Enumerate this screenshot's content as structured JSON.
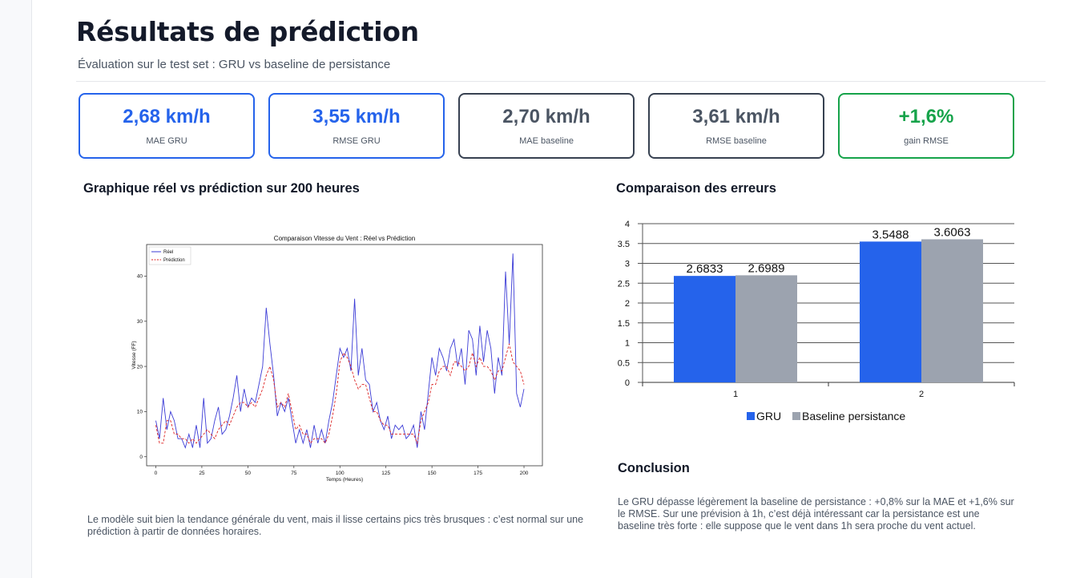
{
  "page": {
    "title": "Résultats de prédiction",
    "subtitle": "Évaluation sur le test set : GRU vs baseline de persistance"
  },
  "metrics": [
    {
      "value": "2,68 km/h",
      "label": "MAE GRU",
      "color": "#2563eb"
    },
    {
      "value": "3,55 km/h",
      "label": "RMSE GRU",
      "color": "#2563eb"
    },
    {
      "value": "2,70 km/h",
      "label": "MAE baseline",
      "color": "#4b5563"
    },
    {
      "value": "3,61 km/h",
      "label": "RMSE baseline",
      "color": "#4b5563"
    },
    {
      "value": "+1,6%",
      "label": "gain RMSE",
      "color": "#16a34a"
    }
  ],
  "sections": {
    "line_heading": "Graphique réel vs prédiction sur 200 heures",
    "line_note": "Le modèle suit bien la tendance générale du vent, mais il lisse certains pics très brusques : c’est normal sur une prédiction à partir de données horaires.",
    "bar_heading": "Comparaison des erreurs",
    "conclusion_heading": "Conclusion",
    "conclusion_text": "Le GRU dépasse légèrement la baseline de persistance : +0,8% sur la MAE et +1,6% sur le RMSE. Sur une prévision à 1h, c’est déjà intéressant car la persistance est une baseline très forte : elle suppose que le vent dans 1h sera proche du vent actuel."
  },
  "chart_data": [
    {
      "type": "line",
      "title": "Comparaison Vitesse du Vent : Réel vs Prédiction",
      "xlabel": "Temps (Heures)",
      "ylabel": "Vitesse (FF)",
      "xlim": [
        -5,
        210
      ],
      "ylim": [
        -2,
        47
      ],
      "xticks": [
        0,
        25,
        50,
        75,
        100,
        125,
        150,
        175,
        200
      ],
      "yticks": [
        0,
        10,
        20,
        30,
        40
      ],
      "legend_position": "top-left",
      "series": [
        {
          "name": "Réel",
          "color": "#3b3bd6",
          "style": "solid",
          "points": [
            [
              0,
              8
            ],
            [
              2,
              4
            ],
            [
              4,
              13
            ],
            [
              6,
              6
            ],
            [
              8,
              10
            ],
            [
              10,
              8
            ],
            [
              12,
              4
            ],
            [
              14,
              4
            ],
            [
              16,
              2
            ],
            [
              18,
              5
            ],
            [
              20,
              2
            ],
            [
              22,
              7
            ],
            [
              24,
              2
            ],
            [
              26,
              13
            ],
            [
              28,
              3
            ],
            [
              30,
              4
            ],
            [
              32,
              8
            ],
            [
              34,
              11
            ],
            [
              36,
              5
            ],
            [
              38,
              6
            ],
            [
              40,
              9
            ],
            [
              42,
              13
            ],
            [
              44,
              18
            ],
            [
              46,
              10
            ],
            [
              48,
              15
            ],
            [
              50,
              11
            ],
            [
              52,
              13
            ],
            [
              54,
              12
            ],
            [
              56,
              16
            ],
            [
              58,
              20
            ],
            [
              60,
              33
            ],
            [
              62,
              25
            ],
            [
              64,
              18
            ],
            [
              66,
              9
            ],
            [
              68,
              12
            ],
            [
              70,
              10
            ],
            [
              72,
              13
            ],
            [
              74,
              8
            ],
            [
              76,
              3
            ],
            [
              78,
              6
            ],
            [
              80,
              3
            ],
            [
              82,
              6
            ],
            [
              84,
              2
            ],
            [
              86,
              7
            ],
            [
              88,
              3
            ],
            [
              90,
              6
            ],
            [
              92,
              3
            ],
            [
              94,
              8
            ],
            [
              96,
              12
            ],
            [
              98,
              18
            ],
            [
              100,
              24
            ],
            [
              102,
              22
            ],
            [
              104,
              24
            ],
            [
              106,
              19
            ],
            [
              108,
              35
            ],
            [
              110,
              18
            ],
            [
              112,
              24
            ],
            [
              114,
              17
            ],
            [
              116,
              16
            ],
            [
              118,
              10
            ],
            [
              120,
              12
            ],
            [
              122,
              8
            ],
            [
              124,
              6
            ],
            [
              126,
              9
            ],
            [
              128,
              4
            ],
            [
              130,
              7
            ],
            [
              132,
              6
            ],
            [
              134,
              7
            ],
            [
              136,
              4
            ],
            [
              138,
              5
            ],
            [
              140,
              7
            ],
            [
              142,
              2
            ],
            [
              144,
              10
            ],
            [
              146,
              6
            ],
            [
              148,
              14
            ],
            [
              150,
              22
            ],
            [
              152,
              18
            ],
            [
              154,
              24
            ],
            [
              156,
              22
            ],
            [
              158,
              19
            ],
            [
              160,
              24
            ],
            [
              162,
              26
            ],
            [
              164,
              20
            ],
            [
              166,
              24
            ],
            [
              168,
              16
            ],
            [
              170,
              28
            ],
            [
              172,
              26
            ],
            [
              174,
              18
            ],
            [
              176,
              29
            ],
            [
              178,
              21
            ],
            [
              180,
              28
            ],
            [
              182,
              24
            ],
            [
              184,
              14
            ],
            [
              186,
              22
            ],
            [
              188,
              18
            ],
            [
              190,
              41
            ],
            [
              192,
              25
            ],
            [
              194,
              45
            ],
            [
              196,
              14
            ],
            [
              198,
              11
            ],
            [
              200,
              15
            ]
          ]
        },
        {
          "name": "Prédiction",
          "color": "#dc2020",
          "style": "dashed",
          "points": [
            [
              0,
              7
            ],
            [
              2,
              3
            ],
            [
              4,
              3
            ],
            [
              6,
              8
            ],
            [
              8,
              8
            ],
            [
              10,
              5
            ],
            [
              12,
              5
            ],
            [
              14,
              4
            ],
            [
              16,
              4
            ],
            [
              18,
              3
            ],
            [
              20,
              4
            ],
            [
              22,
              3
            ],
            [
              24,
              4
            ],
            [
              26,
              5
            ],
            [
              28,
              6
            ],
            [
              30,
              5
            ],
            [
              32,
              4
            ],
            [
              34,
              6
            ],
            [
              36,
              7
            ],
            [
              38,
              8
            ],
            [
              40,
              7
            ],
            [
              42,
              9
            ],
            [
              44,
              11
            ],
            [
              46,
              12
            ],
            [
              48,
              12
            ],
            [
              50,
              11
            ],
            [
              52,
              12
            ],
            [
              54,
              11
            ],
            [
              56,
              13
            ],
            [
              58,
              15
            ],
            [
              60,
              18
            ],
            [
              62,
              20
            ],
            [
              64,
              17
            ],
            [
              66,
              11
            ],
            [
              68,
              12
            ],
            [
              70,
              11
            ],
            [
              72,
              14
            ],
            [
              74,
              10
            ],
            [
              76,
              6
            ],
            [
              78,
              7
            ],
            [
              80,
              5
            ],
            [
              82,
              5
            ],
            [
              84,
              3
            ],
            [
              86,
              4
            ],
            [
              88,
              4
            ],
            [
              90,
              4
            ],
            [
              92,
              3
            ],
            [
              94,
              5
            ],
            [
              96,
              9
            ],
            [
              98,
              14
            ],
            [
              100,
              21
            ],
            [
              102,
              23
            ],
            [
              104,
              22
            ],
            [
              106,
              20
            ],
            [
              108,
              17
            ],
            [
              110,
              15
            ],
            [
              112,
              16
            ],
            [
              114,
              16
            ],
            [
              116,
              13
            ],
            [
              118,
              10
            ],
            [
              120,
              10
            ],
            [
              122,
              8
            ],
            [
              124,
              7
            ],
            [
              126,
              7
            ],
            [
              128,
              5
            ],
            [
              130,
              5
            ],
            [
              132,
              5
            ],
            [
              134,
              5
            ],
            [
              136,
              5
            ],
            [
              138,
              5
            ],
            [
              140,
              5
            ],
            [
              142,
              3
            ],
            [
              144,
              8
            ],
            [
              146,
              10
            ],
            [
              148,
              12
            ],
            [
              150,
              16
            ],
            [
              152,
              16
            ],
            [
              154,
              19
            ],
            [
              156,
              20
            ],
            [
              158,
              20
            ],
            [
              160,
              18
            ],
            [
              162,
              21
            ],
            [
              164,
              21
            ],
            [
              166,
              20
            ],
            [
              168,
              19
            ],
            [
              170,
              20
            ],
            [
              172,
              23
            ],
            [
              174,
              20
            ],
            [
              176,
              22
            ],
            [
              178,
              20
            ],
            [
              180,
              20
            ],
            [
              182,
              19
            ],
            [
              184,
              17
            ],
            [
              186,
              19
            ],
            [
              188,
              19
            ],
            [
              190,
              22
            ],
            [
              192,
              25
            ],
            [
              194,
              21
            ],
            [
              196,
              20
            ],
            [
              198,
              19
            ],
            [
              200,
              16
            ]
          ]
        }
      ]
    },
    {
      "type": "bar",
      "categories": [
        "1",
        "2"
      ],
      "ylim": [
        0,
        4
      ],
      "yticks": [
        0,
        0.5,
        1,
        1.5,
        2,
        2.5,
        3,
        3.5,
        4
      ],
      "grid": true,
      "legend_position": "bottom",
      "series": [
        {
          "name": "GRU",
          "color": "#2563eb",
          "values": [
            2.6833,
            3.5488
          ]
        },
        {
          "name": "Baseline persistance",
          "color": "#9ca3af",
          "values": [
            2.6989,
            3.6063
          ]
        }
      ]
    }
  ]
}
